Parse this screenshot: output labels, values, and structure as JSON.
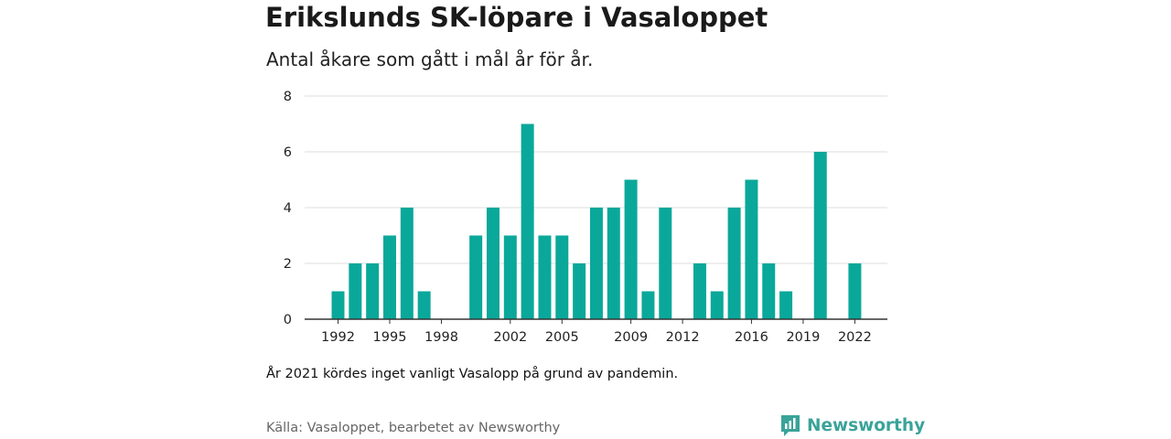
{
  "header": {
    "title": "Erikslunds SK-löpare i Vasaloppet",
    "subtitle": "Antal åkare som gått i mål år för år."
  },
  "footer": {
    "note": "År 2021 kördes inget vanligt Vasalopp på grund av pandemin.",
    "source": "Källa: Vasaloppet, bearbetet av Newsworthy",
    "brand": "Newsworthy",
    "brand_icon": "newsworthy-logo-icon"
  },
  "colors": {
    "bar": "#0aa89a",
    "grid": "#dddddd",
    "axis": "#333333",
    "brand": "#3aa39a"
  },
  "chart_data": {
    "type": "bar",
    "title": "Erikslunds SK-löpare i Vasaloppet",
    "subtitle": "Antal åkare som gått i mål år för år.",
    "xlabel": "",
    "ylabel": "",
    "x": [
      1992,
      1993,
      1994,
      1995,
      1996,
      1997,
      1998,
      1999,
      2000,
      2001,
      2002,
      2003,
      2004,
      2005,
      2006,
      2007,
      2008,
      2009,
      2010,
      2011,
      2012,
      2013,
      2014,
      2015,
      2016,
      2017,
      2018,
      2019,
      2020,
      2021,
      2022
    ],
    "values": [
      1,
      2,
      2,
      3,
      4,
      1,
      0,
      0,
      3,
      4,
      3,
      7,
      3,
      3,
      2,
      4,
      4,
      5,
      1,
      4,
      0,
      2,
      1,
      4,
      5,
      2,
      1,
      0,
      6,
      0,
      2
    ],
    "x_ticks": [
      1992,
      1995,
      1998,
      2002,
      2005,
      2009,
      2012,
      2016,
      2019,
      2022
    ],
    "y_ticks": [
      0,
      2,
      4,
      6,
      8
    ],
    "ylim": [
      0,
      8
    ],
    "grid": "horizontal"
  }
}
